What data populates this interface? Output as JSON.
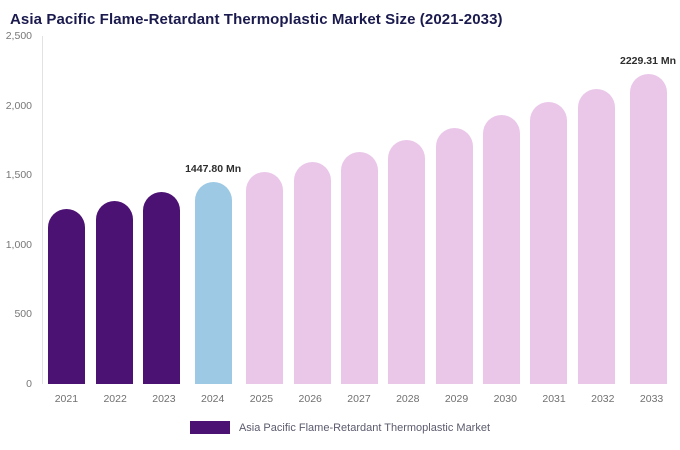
{
  "header": {
    "title": "Asia Pacific Flame-Retardant Thermoplastic Market Size (2021-2033)"
  },
  "chart_data": {
    "type": "bar",
    "title": "Asia Pacific Flame-Retardant Thermoplastic Market Size (2021-2033)",
    "xlabel": "",
    "ylabel": "",
    "ylim": [
      0,
      2500
    ],
    "grid": false,
    "legend_position": "bottom",
    "categories": [
      "2021",
      "2022",
      "2023",
      "2024",
      "2025",
      "2026",
      "2027",
      "2028",
      "2029",
      "2030",
      "2031",
      "2032",
      "2033"
    ],
    "values": [
      1255,
      1315,
      1380,
      1447.8,
      1520,
      1595,
      1670,
      1750,
      1840,
      1930,
      2025,
      2120,
      2229.31
    ],
    "yticks": [
      "2,500",
      "2,000",
      "1,500",
      "1,000",
      "500",
      "0"
    ],
    "data_labels": [
      {
        "index": 3,
        "text": "1447.80 Mn"
      },
      {
        "index": 12,
        "text": "2229.31 Mn"
      }
    ],
    "bar_colors": {
      "historical": "#4b1273",
      "current": "#9dc9e4",
      "forecast": "#eac7e9"
    },
    "color_map": [
      "historical",
      "historical",
      "historical",
      "current",
      "forecast",
      "forecast",
      "forecast",
      "forecast",
      "forecast",
      "forecast",
      "forecast",
      "forecast",
      "forecast"
    ]
  },
  "legend": {
    "label": "Asia Pacific Flame-Retardant Thermoplastic Market",
    "swatch_color": "#4b1273"
  }
}
